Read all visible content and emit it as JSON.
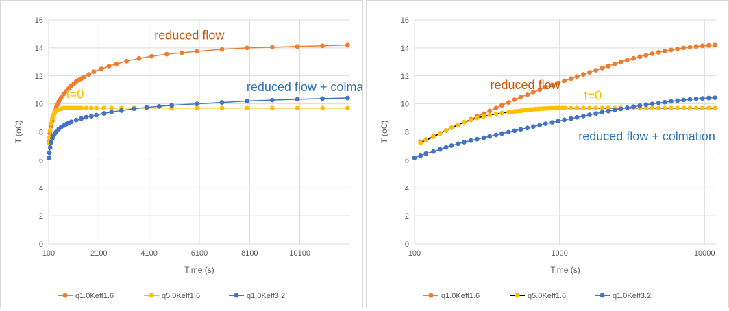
{
  "chart_data": [
    {
      "type": "scatter",
      "subtype": "lines-with-markers",
      "x_scale": "linear",
      "xlabel": "Time (s)",
      "ylabel": "T (oC)",
      "xlim": [
        100,
        12100
      ],
      "ylim": [
        0,
        16
      ],
      "x_ticks": [
        100,
        2100,
        4100,
        6100,
        8100,
        10100
      ],
      "x_tick_labels": [
        "100",
        "2100",
        "4100",
        "6100",
        "8100",
        "10100"
      ],
      "y_ticks": [
        0,
        2,
        4,
        6,
        8,
        10,
        12,
        14,
        16
      ],
      "y_tick_labels": [
        "0",
        "2",
        "4",
        "6",
        "8",
        "10",
        "12",
        "14",
        "16"
      ],
      "grid": "vertical and horizontal major",
      "legend": "bottom",
      "series": [
        {
          "name": "q1.0Keff1.6",
          "color": "#ED7D31",
          "line_color": "#ED7D31",
          "x": [
            110,
            150,
            200,
            250,
            300,
            350,
            400,
            450,
            500,
            550,
            600,
            700,
            800,
            900,
            1000,
            1100,
            1200,
            1300,
            1400,
            1500,
            1700,
            1900,
            2200,
            2500,
            2800,
            3200,
            3700,
            4200,
            4800,
            5400,
            6000,
            7000,
            8000,
            9000,
            10000,
            11000,
            12000
          ],
          "y": [
            7.3,
            7.9,
            8.4,
            8.8,
            9.2,
            9.5,
            9.75,
            9.95,
            10.15,
            10.3,
            10.45,
            10.7,
            10.9,
            11.1,
            11.3,
            11.45,
            11.6,
            11.7,
            11.8,
            11.9,
            12.1,
            12.3,
            12.5,
            12.7,
            12.85,
            13.05,
            13.25,
            13.4,
            13.55,
            13.65,
            13.75,
            13.9,
            14.0,
            14.05,
            14.1,
            14.15,
            14.2
          ]
        },
        {
          "name": "q5.0Keff1.6",
          "color": "#FFC000",
          "line_color": "#FFC000",
          "x": [
            110,
            130,
            160,
            200,
            250,
            300,
            350,
            400,
            450,
            500,
            600,
            700,
            800,
            900,
            1000,
            1100,
            1200,
            1300,
            1400,
            1600,
            1800,
            2000,
            2300,
            2600,
            3000,
            3500,
            4000,
            5000,
            6000,
            7000,
            8000,
            9000,
            10000,
            11000,
            12000
          ],
          "y": [
            7.2,
            7.6,
            8.1,
            8.6,
            9.0,
            9.25,
            9.4,
            9.5,
            9.55,
            9.6,
            9.65,
            9.7,
            9.7,
            9.7,
            9.7,
            9.7,
            9.7,
            9.7,
            9.7,
            9.7,
            9.7,
            9.7,
            9.7,
            9.7,
            9.7,
            9.7,
            9.7,
            9.7,
            9.7,
            9.7,
            9.7,
            9.7,
            9.7,
            9.7,
            9.7
          ]
        },
        {
          "name": "q1.0Keff3.2",
          "color": "#4472C4",
          "line_color": "#4472C4",
          "x": [
            110,
            130,
            160,
            200,
            250,
            300,
            350,
            400,
            500,
            600,
            700,
            800,
            900,
            1000,
            1200,
            1400,
            1600,
            1800,
            2000,
            2300,
            2600,
            3000,
            3500,
            4000,
            4500,
            5000,
            6000,
            7000,
            8000,
            9000,
            10000,
            11000,
            12000
          ],
          "y": [
            6.15,
            6.5,
            6.9,
            7.25,
            7.55,
            7.75,
            7.9,
            8.0,
            8.2,
            8.35,
            8.45,
            8.55,
            8.65,
            8.72,
            8.85,
            8.95,
            9.05,
            9.12,
            9.2,
            9.32,
            9.42,
            9.52,
            9.65,
            9.75,
            9.82,
            9.9,
            10.0,
            10.1,
            10.2,
            10.27,
            10.33,
            10.38,
            10.42
          ]
        }
      ],
      "annotations": [
        {
          "text": "reduced flow",
          "color": "#C55A11",
          "x": 5700,
          "y": 14.6
        },
        {
          "text": "t=0",
          "color": "#FFC000",
          "x": 1150,
          "y": 10.4
        },
        {
          "text": "reduced flow + colmation",
          "color": "#2E75B6",
          "x": 10700,
          "y": 10.9
        }
      ]
    },
    {
      "type": "scatter",
      "subtype": "lines-with-markers",
      "x_scale": "log",
      "xlabel": "Time (s)",
      "ylabel": "T (oC)",
      "xlim": [
        100,
        12000
      ],
      "ylim": [
        0,
        16
      ],
      "x_ticks": [
        100,
        1000,
        10000
      ],
      "x_tick_labels": [
        "100",
        "1000",
        "10000"
      ],
      "y_ticks": [
        0,
        2,
        4,
        6,
        8,
        10,
        12,
        14,
        16
      ],
      "y_tick_labels": [
        "0",
        "2",
        "4",
        "6",
        "8",
        "10",
        "12",
        "14",
        "16"
      ],
      "grid": "vertical and horizontal major",
      "legend": "bottom",
      "series": [
        {
          "name": "q1.0Keff1.6",
          "color": "#ED7D31",
          "line_color": "#ED7D31",
          "x": [
            110,
            120,
            135,
            150,
            165,
            180,
            200,
            220,
            245,
            270,
            300,
            330,
            365,
            400,
            445,
            490,
            540,
            600,
            660,
            730,
            800,
            890,
            980,
            1080,
            1200,
            1320,
            1460,
            1610,
            1780,
            1970,
            2170,
            2400,
            2650,
            2930,
            3240,
            3580,
            3950,
            4360,
            4820,
            5320,
            5880,
            6500,
            7180,
            7930,
            8760,
            9680,
            10700,
            11800
          ],
          "y": [
            7.3,
            7.45,
            7.7,
            7.9,
            8.1,
            8.3,
            8.5,
            8.7,
            8.9,
            9.1,
            9.3,
            9.5,
            9.7,
            9.9,
            10.1,
            10.3,
            10.5,
            10.65,
            10.85,
            11.0,
            11.2,
            11.35,
            11.5,
            11.65,
            11.8,
            11.95,
            12.1,
            12.25,
            12.4,
            12.55,
            12.7,
            12.85,
            13.0,
            13.12,
            13.25,
            13.37,
            13.48,
            13.58,
            13.68,
            13.77,
            13.85,
            13.93,
            14.0,
            14.05,
            14.1,
            14.15,
            14.18,
            14.2
          ]
        },
        {
          "name": "q5.0Keff1.6",
          "color": "#FFC000",
          "line_color": "#000000",
          "x": [
            110,
            120,
            135,
            150,
            165,
            180,
            200,
            220,
            245,
            270,
            300,
            330,
            365,
            400,
            445,
            470,
            490,
            510,
            530,
            550,
            570,
            590,
            610,
            630,
            650,
            680,
            710,
            740,
            770,
            800,
            840,
            880,
            920,
            960,
            1000,
            1050,
            1100,
            1200,
            1320,
            1460,
            1610,
            1780,
            1970,
            2170,
            2400,
            2650,
            2930,
            3240,
            3580,
            3950,
            4360,
            4820,
            5320,
            5880,
            6500,
            7180,
            7930,
            8760,
            9680,
            10700,
            11800
          ],
          "y": [
            7.2,
            7.4,
            7.65,
            7.9,
            8.1,
            8.3,
            8.5,
            8.7,
            8.85,
            9.0,
            9.1,
            9.2,
            9.28,
            9.35,
            9.4,
            9.43,
            9.46,
            9.48,
            9.5,
            9.52,
            9.54,
            9.56,
            9.58,
            9.6,
            9.61,
            9.63,
            9.64,
            9.65,
            9.66,
            9.67,
            9.68,
            9.69,
            9.69,
            9.7,
            9.7,
            9.7,
            9.7,
            9.7,
            9.7,
            9.7,
            9.7,
            9.7,
            9.7,
            9.7,
            9.7,
            9.7,
            9.7,
            9.7,
            9.7,
            9.7,
            9.7,
            9.7,
            9.7,
            9.7,
            9.7,
            9.7,
            9.7,
            9.7,
            9.7,
            9.7,
            9.7
          ]
        },
        {
          "name": "q1.0Keff3.2",
          "color": "#4472C4",
          "line_color": "#4472C4",
          "x": [
            100,
            110,
            120,
            135,
            150,
            165,
            180,
            200,
            220,
            245,
            270,
            300,
            330,
            365,
            400,
            445,
            490,
            540,
            600,
            660,
            730,
            800,
            890,
            980,
            1080,
            1200,
            1320,
            1460,
            1610,
            1780,
            1970,
            2170,
            2400,
            2650,
            2930,
            3240,
            3580,
            3950,
            4360,
            4820,
            5320,
            5880,
            6500,
            7180,
            7930,
            8760,
            9680,
            10700,
            11800
          ],
          "y": [
            6.15,
            6.3,
            6.45,
            6.6,
            6.75,
            6.9,
            7.02,
            7.15,
            7.27,
            7.38,
            7.48,
            7.58,
            7.68,
            7.78,
            7.88,
            7.98,
            8.08,
            8.18,
            8.28,
            8.38,
            8.48,
            8.58,
            8.68,
            8.77,
            8.86,
            8.95,
            9.04,
            9.13,
            9.22,
            9.31,
            9.4,
            9.48,
            9.56,
            9.64,
            9.72,
            9.8,
            9.87,
            9.94,
            10.0,
            10.06,
            10.12,
            10.18,
            10.23,
            10.28,
            10.32,
            10.36,
            10.39,
            10.42,
            10.44
          ]
        }
      ],
      "annotations": [
        {
          "text": "reduced flow",
          "color": "#C55A11",
          "x": 580,
          "y": 11.05
        },
        {
          "text": "t=0",
          "color": "#FFC000",
          "x": 1700,
          "y": 10.3
        },
        {
          "text": "reduced flow + colmation",
          "color": "#2E75B6",
          "x": 4000,
          "y": 7.4
        }
      ]
    }
  ]
}
